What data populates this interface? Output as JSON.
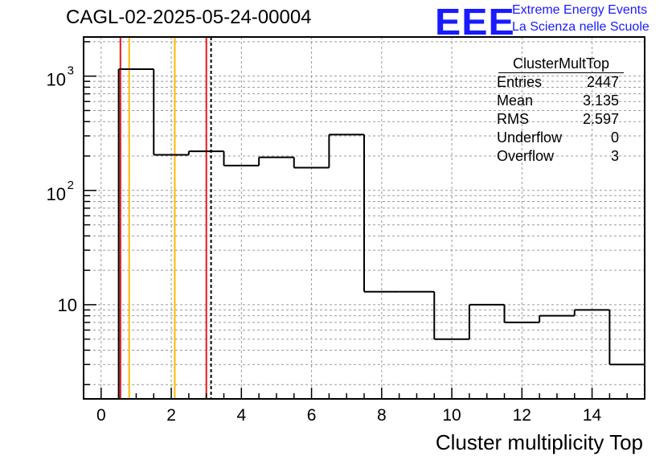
{
  "header": {
    "title": "CAGL-02-2025-05-24-00004",
    "logo": "EEE",
    "logo_line1": "Extreme Energy Events",
    "logo_line2": "La Scienza nelle Scuole"
  },
  "stats_box": {
    "title": "ClusterMultTop",
    "rows": [
      {
        "label": "Entries",
        "value": "2447"
      },
      {
        "label": "Mean",
        "value": "3.135"
      },
      {
        "label": "RMS",
        "value": "2.597"
      },
      {
        "label": "Underflow",
        "value": "0"
      },
      {
        "label": "Overflow",
        "value": "3"
      }
    ]
  },
  "chart_data": {
    "type": "histogram",
    "xlabel": "Cluster multiplicity Top",
    "ylabel": "",
    "y_scale": "log",
    "xlim": [
      -0.5,
      15.5
    ],
    "ylim": [
      1.5,
      2200
    ],
    "grid": true,
    "x_ticks": [
      0,
      2,
      4,
      6,
      8,
      10,
      12,
      14
    ],
    "y_tick_labels": [
      {
        "value": 10,
        "label": "10"
      },
      {
        "value": 100,
        "label": "10²"
      },
      {
        "value": 1000,
        "label": "10³"
      }
    ],
    "bins": [
      {
        "lo": 0.5,
        "hi": 1.5,
        "value": 1150
      },
      {
        "lo": 1.5,
        "hi": 2.5,
        "value": 205
      },
      {
        "lo": 2.5,
        "hi": 3.5,
        "value": 220
      },
      {
        "lo": 3.5,
        "hi": 4.5,
        "value": 165
      },
      {
        "lo": 4.5,
        "hi": 5.5,
        "value": 195
      },
      {
        "lo": 5.5,
        "hi": 6.5,
        "value": 158
      },
      {
        "lo": 6.5,
        "hi": 7.5,
        "value": 308
      },
      {
        "lo": 7.5,
        "hi": 8.5,
        "value": 13
      },
      {
        "lo": 8.5,
        "hi": 9.5,
        "value": 13
      },
      {
        "lo": 9.5,
        "hi": 10.5,
        "value": 5
      },
      {
        "lo": 10.5,
        "hi": 11.5,
        "value": 10
      },
      {
        "lo": 11.5,
        "hi": 12.5,
        "value": 7
      },
      {
        "lo": 12.5,
        "hi": 13.5,
        "value": 8
      },
      {
        "lo": 13.5,
        "hi": 14.5,
        "value": 9
      },
      {
        "lo": 14.5,
        "hi": 15.5,
        "value": 3
      }
    ],
    "vertical_lines": [
      {
        "x": 0.55,
        "color": "#e8151b",
        "style": "solid"
      },
      {
        "x": 0.8,
        "color": "#ffb800",
        "style": "solid"
      },
      {
        "x": 2.1,
        "color": "#ffb800",
        "style": "solid"
      },
      {
        "x": 3.0,
        "color": "#e8151b",
        "style": "solid"
      },
      {
        "x": 3.135,
        "color": "#000000",
        "style": "dashed"
      }
    ]
  },
  "colors": {
    "logo": "#1a1aff",
    "histogram": "#000000",
    "grid": "#9a9a9a"
  }
}
